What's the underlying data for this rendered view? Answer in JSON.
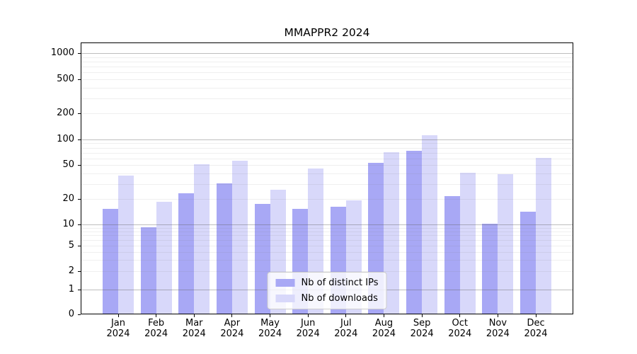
{
  "title": "MMAPPR2 2024",
  "chart_data": {
    "type": "bar",
    "categories": [
      "Jan 2024",
      "Feb 2024",
      "Mar 2024",
      "Apr 2024",
      "May 2024",
      "Jun 2024",
      "Jul 2024",
      "Aug 2024",
      "Sep 2024",
      "Oct 2024",
      "Nov 2024",
      "Dec 2024"
    ],
    "x_tick_months": [
      "Jan",
      "Feb",
      "Mar",
      "Apr",
      "May",
      "Jun",
      "Jul",
      "Aug",
      "Sep",
      "Oct",
      "Nov",
      "Dec"
    ],
    "x_tick_year": "2024",
    "series": [
      {
        "name": "Nb of distinct IPs",
        "color": "#a8a8f5",
        "values": [
          15,
          9,
          23,
          30,
          17,
          15,
          16,
          52,
          72,
          21,
          10,
          14
        ]
      },
      {
        "name": "Nb of downloads",
        "color": "#d8d8fa",
        "values": [
          37,
          18,
          50,
          55,
          25,
          45,
          19,
          70,
          110,
          40,
          38,
          60
        ]
      }
    ],
    "y_ticks": [
      0,
      1,
      2,
      5,
      10,
      20,
      50,
      100,
      200,
      500,
      1000
    ],
    "y_scale": "symlog",
    "ylim": [
      0,
      1300
    ],
    "grid": true,
    "legend_position": "lower-center"
  },
  "colors": {
    "bar_distinct_ips": "#a8a8f5",
    "bar_downloads": "#d8d8fa",
    "grid_major": "#c4c4c4",
    "grid_minor": "#eeeeee",
    "axis": "#000000",
    "background": "#ffffff"
  }
}
